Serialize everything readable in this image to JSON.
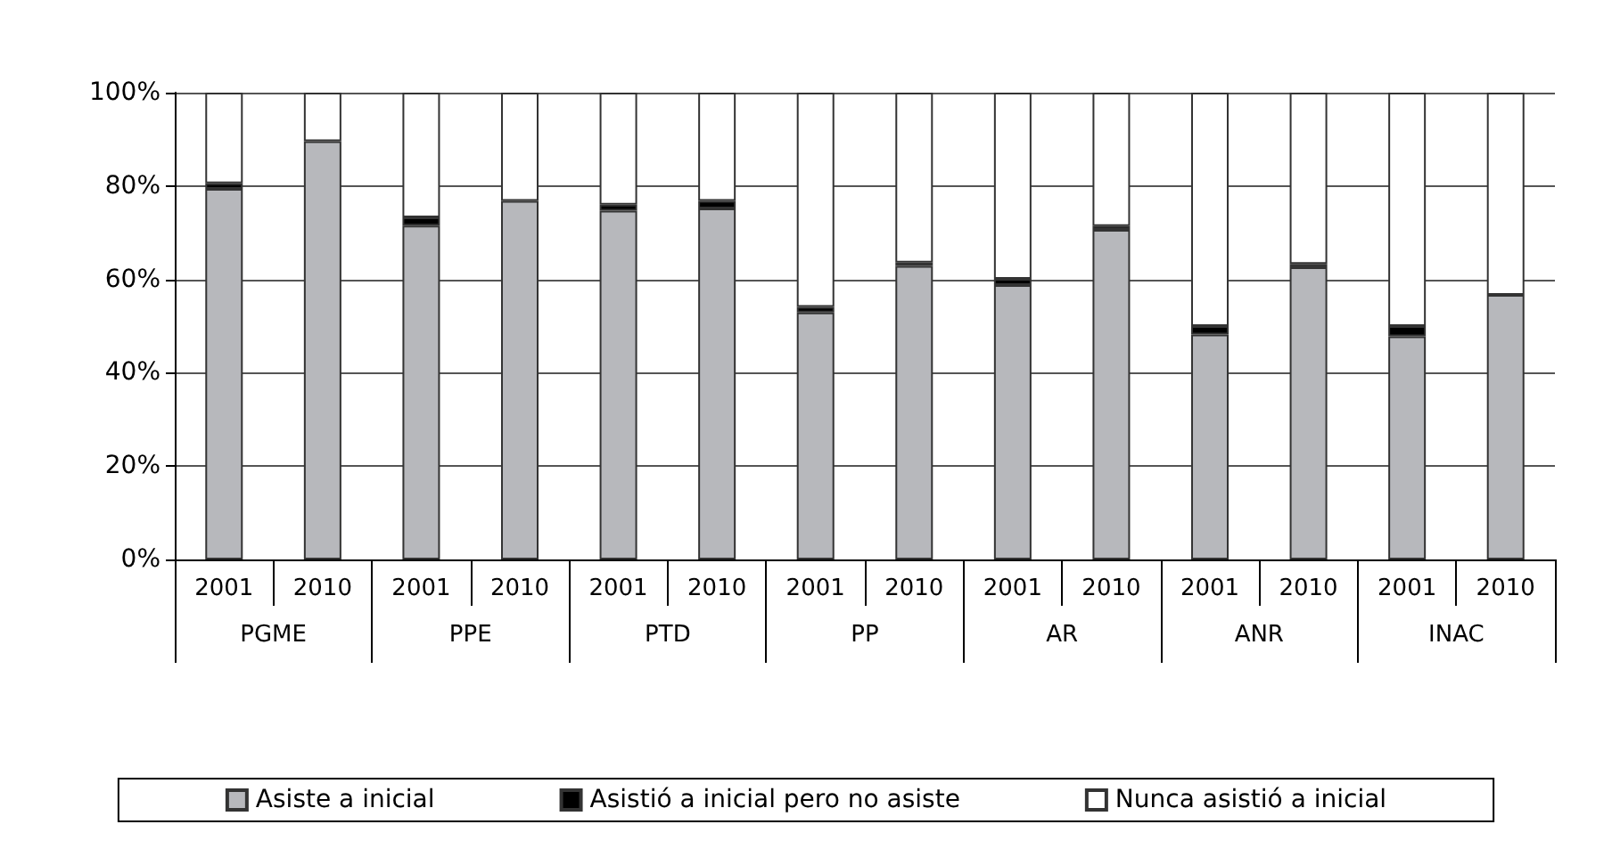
{
  "chart_data": {
    "type": "bar",
    "stacked": true,
    "categories": [
      "2001",
      "2010",
      "2001",
      "2010",
      "2001",
      "2010",
      "2001",
      "2010",
      "2001",
      "2010",
      "2001",
      "2010",
      "2001",
      "2010"
    ],
    "annotations": [
      "PGME",
      "PPE",
      "PTD",
      "PP",
      "AR",
      "ANR",
      "INAC"
    ],
    "series": [
      {
        "name": "Asiste a inicial",
        "color": "#b7b8bc",
        "values": [
          79.4,
          89.6,
          71.5,
          76.8,
          74.7,
          75.2,
          52.9,
          62.9,
          58.8,
          70.6,
          48.2,
          62.6,
          47.8,
          56.7
        ]
      },
      {
        "name": "Asistió a inicial pero no asiste",
        "color": "#000000",
        "values": [
          1.2,
          0,
          1.8,
          0,
          1.3,
          1.6,
          1.2,
          0.7,
          1.3,
          0.8,
          1.8,
          0.7,
          2.2,
          0
        ]
      },
      {
        "name": "Nunca asistió a inicial",
        "color": "#ffffff",
        "values": [
          19.4,
          10.4,
          26.7,
          23.2,
          24.0,
          23.2,
          45.9,
          36.4,
          39.9,
          28.6,
          50.0,
          36.7,
          50.0,
          43.3
        ]
      }
    ],
    "ylim": [
      0,
      100
    ],
    "yticks": [
      {
        "value": 0,
        "label": "0%"
      },
      {
        "value": 20,
        "label": "20%"
      },
      {
        "value": 40,
        "label": "40%"
      },
      {
        "value": 60,
        "label": "60%"
      },
      {
        "value": 80,
        "label": "80%"
      },
      {
        "value": 100,
        "label": "100%"
      }
    ],
    "grid": "y",
    "legend": "bottom"
  }
}
